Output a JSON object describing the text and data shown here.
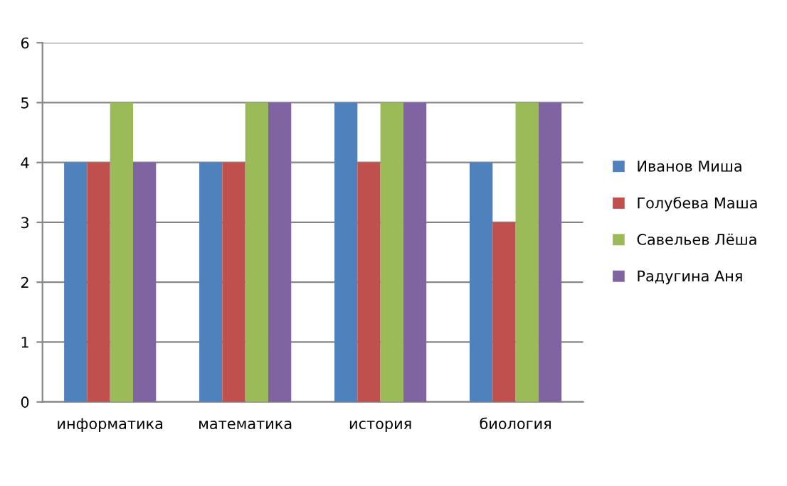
{
  "chart_data": {
    "type": "bar",
    "categories": [
      "информатика",
      "математика",
      "история",
      "биология"
    ],
    "series": [
      {
        "name": "Иванов Миша",
        "color": "#4f81bd",
        "values": [
          4,
          4,
          5,
          4
        ]
      },
      {
        "name": "Голубева Маша",
        "color": "#c0504d",
        "values": [
          4,
          4,
          4,
          3
        ]
      },
      {
        "name": "Савельев Лёша",
        "color": "#9bbb59",
        "values": [
          5,
          5,
          5,
          5
        ]
      },
      {
        "name": "Радугина Аня",
        "color": "#8064a2",
        "values": [
          4,
          5,
          5,
          5
        ]
      }
    ],
    "ylim": [
      0,
      6
    ],
    "yticks": [
      0,
      1,
      2,
      3,
      4,
      5,
      6
    ],
    "grid": "y",
    "legend": "right"
  }
}
